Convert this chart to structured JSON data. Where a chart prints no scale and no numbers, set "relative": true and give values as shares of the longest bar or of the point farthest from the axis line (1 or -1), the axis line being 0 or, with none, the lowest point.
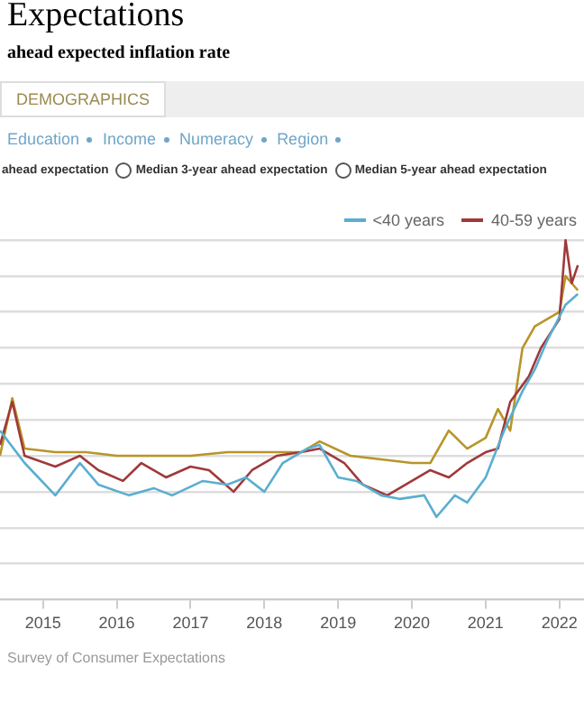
{
  "chart_data": {
    "type": "line",
    "title": "Expectations",
    "subtitle": "ahead expected inflation rate",
    "relative": true,
    "grid": "y",
    "legend": "top right",
    "marker": "none",
    "line_style": "solid",
    "xlim": [
      "2014-06",
      "2022-05"
    ],
    "xticks": [
      {
        "value": "2015-01",
        "label": "2015"
      },
      {
        "value": "2016-01",
        "label": "2016"
      },
      {
        "value": "2017-01",
        "label": "2017"
      },
      {
        "value": "2018-01",
        "label": "2018"
      },
      {
        "value": "2019-01",
        "label": "2019"
      },
      {
        "value": "2020-01",
        "label": "2020"
      },
      {
        "value": "2021-01",
        "label": "2021"
      },
      {
        "value": "2022-01",
        "label": "2022"
      }
    ],
    "annotations": [
      "DEMOGRAPHICS",
      "Education",
      "Income",
      "Numeracy",
      "Region",
      "ahead expectation",
      "Median 3-year ahead expectation",
      "Median 5-year ahead expectation",
      "Survey of Consumer Expectations"
    ],
    "series": [
      {
        "name": "<40 years",
        "color": "#5aaed0",
        "x": [
          "2014-06",
          "2014-10",
          "2015-03",
          "2015-07",
          "2015-10",
          "2016-03",
          "2016-07",
          "2016-10",
          "2017-03",
          "2017-07",
          "2017-10",
          "2018-01",
          "2018-04",
          "2018-08",
          "2018-10",
          "2019-01",
          "2019-04",
          "2019-08",
          "2019-11",
          "2020-03",
          "2020-05",
          "2020-08",
          "2020-10",
          "2021-01",
          "2021-04",
          "2021-07",
          "2021-09",
          "2021-11",
          "2022-02",
          "2022-04"
        ],
        "values": [
          0.47,
          0.38,
          0.29,
          0.38,
          0.32,
          0.29,
          0.31,
          0.29,
          0.33,
          0.32,
          0.34,
          0.3,
          0.38,
          0.42,
          0.43,
          0.34,
          0.33,
          0.29,
          0.28,
          0.29,
          0.23,
          0.29,
          0.27,
          0.34,
          0.47,
          0.58,
          0.64,
          0.72,
          0.82,
          0.85
        ]
      },
      {
        "name": "40-59 years",
        "color": "#a0393a",
        "x": [
          "2014-06",
          "2014-08",
          "2014-10",
          "2015-03",
          "2015-07",
          "2015-10",
          "2016-02",
          "2016-05",
          "2016-09",
          "2017-01",
          "2017-04",
          "2017-08",
          "2017-11",
          "2018-03",
          "2018-07",
          "2018-10",
          "2019-02",
          "2019-05",
          "2019-09",
          "2020-01",
          "2020-04",
          "2020-07",
          "2020-10",
          "2021-01",
          "2021-03",
          "2021-05",
          "2021-08",
          "2021-10",
          "2022-01",
          "2022-02",
          "2022-03",
          "2022-04"
        ],
        "values": [
          0.43,
          0.55,
          0.4,
          0.37,
          0.4,
          0.36,
          0.33,
          0.38,
          0.34,
          0.37,
          0.36,
          0.3,
          0.36,
          0.4,
          0.41,
          0.42,
          0.38,
          0.32,
          0.29,
          0.33,
          0.36,
          0.34,
          0.38,
          0.41,
          0.42,
          0.55,
          0.62,
          0.7,
          0.78,
          1,
          0.88,
          0.93
        ]
      },
      {
        "color": "#b8952a",
        "x": [
          "2014-06",
          "2014-08",
          "2014-10",
          "2015-03",
          "2015-08",
          "2016-01",
          "2016-07",
          "2017-01",
          "2017-07",
          "2018-01",
          "2018-07",
          "2018-10",
          "2019-03",
          "2019-08",
          "2020-01",
          "2020-04",
          "2020-07",
          "2020-10",
          "2021-01",
          "2021-03",
          "2021-05",
          "2021-07",
          "2021-09",
          "2021-11",
          "2022-01",
          "2022-02",
          "2022-04"
        ],
        "values": [
          0.4,
          0.56,
          0.42,
          0.41,
          0.41,
          0.4,
          0.4,
          0.4,
          0.41,
          0.41,
          0.41,
          0.44,
          0.4,
          0.39,
          0.38,
          0.38,
          0.47,
          0.42,
          0.45,
          0.53,
          0.47,
          0.7,
          0.76,
          0.78,
          0.8,
          0.9,
          0.86
        ]
      }
    ]
  }
}
